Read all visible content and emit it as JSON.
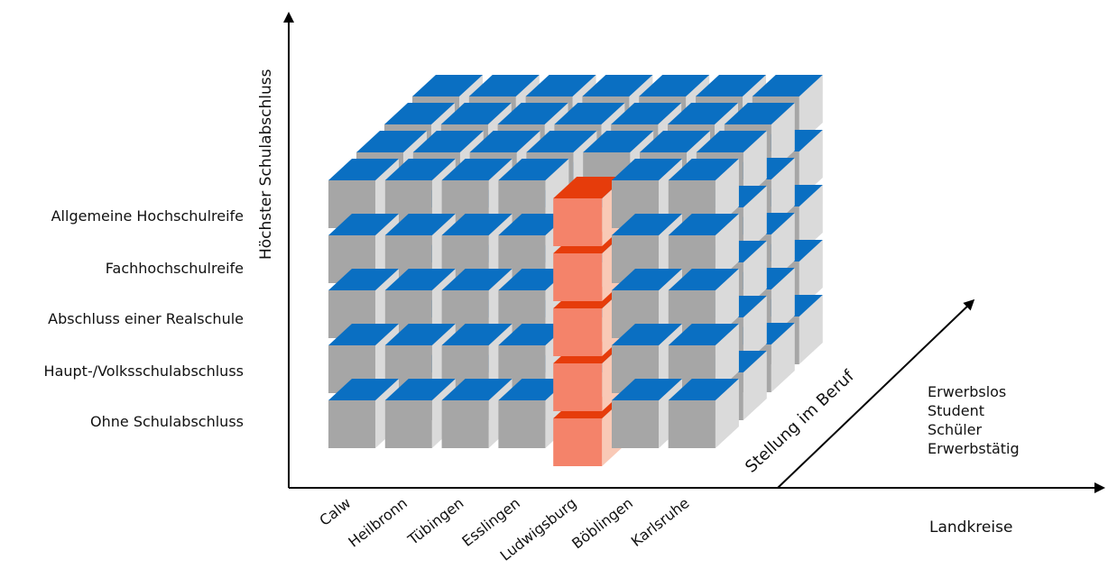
{
  "title": "",
  "axes": {
    "vertical_title": "Höchster Schulabschluss",
    "horizontal_title": "Landkreise",
    "depth_title": "Stellung im Beruf"
  },
  "schulabschluss": [
    "Allgemeine Hochschulreife",
    "Fachhochschulreife",
    "Abschluss einer Realschule",
    "Haupt-/Volksschulabschluss",
    "Ohne Schulabschluss"
  ],
  "landkreise": [
    "Calw",
    "Heilbronn",
    "Tübingen",
    "Esslingen",
    "Ludwigsburg",
    "Böblingen",
    "Karlsruhe"
  ],
  "stellung_im_beruf": [
    "Erwerbslos",
    "Student",
    "Schüler",
    "Erwerbstätig"
  ],
  "highlight": {
    "landkreis": "Ludwigsburg",
    "stellung_im_beruf": "Erwerbstätig"
  },
  "colors": {
    "cube_front": "#a6a6a6",
    "cube_side": "#dadada",
    "cube_top": "#0a6fc2",
    "highlight_front": "#f4836a",
    "highlight_side": "#f9c9b6",
    "highlight_top": "#e63c0b",
    "axis": "#000000"
  }
}
